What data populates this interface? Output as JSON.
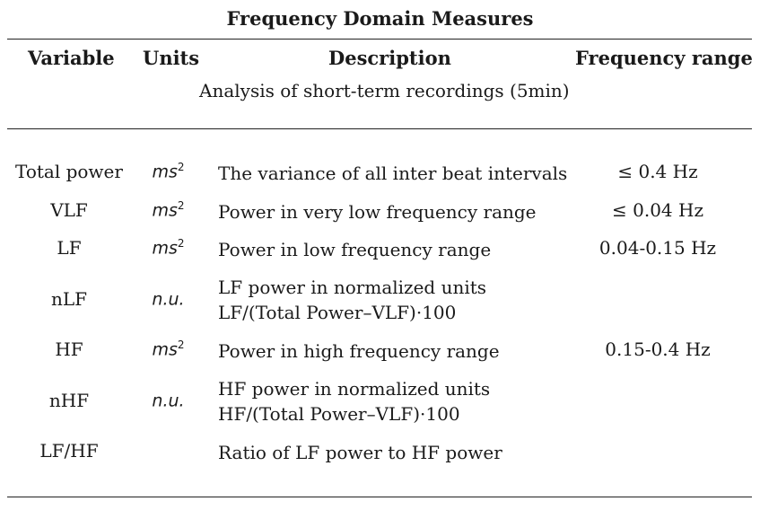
{
  "table": {
    "title": "Frequency Domain Measures",
    "headers": {
      "variable": "Variable",
      "units": "Units",
      "description": "Description",
      "frequency_range": "Frequency range"
    },
    "subheader": "Analysis of short-term recordings (5min)",
    "rows": [
      {
        "variable": "Total power",
        "units_base": "ms",
        "units_sup": "2",
        "description_1": "The variance of all inter beat intervals",
        "description_2": "",
        "frequency": "≤ 0.4 Hz"
      },
      {
        "variable": "VLF",
        "units_base": "ms",
        "units_sup": "2",
        "description_1": "Power in very low frequency range",
        "description_2": "",
        "frequency": "≤ 0.04 Hz"
      },
      {
        "variable": "LF",
        "units_base": "ms",
        "units_sup": "2",
        "description_1": "Power in low frequency range",
        "description_2": "",
        "frequency": "0.04-0.15 Hz"
      },
      {
        "variable": "nLF",
        "units_base": "n.u.",
        "units_sup": "",
        "description_1": "LF power in normalized units",
        "description_2": "LF/(Total Power–VLF)·100",
        "frequency": ""
      },
      {
        "variable": "HF",
        "units_base": "ms",
        "units_sup": "2",
        "description_1": "Power in high frequency range",
        "description_2": "",
        "frequency": "0.15-0.4 Hz"
      },
      {
        "variable": "nHF",
        "units_base": "n.u.",
        "units_sup": "",
        "description_1": "HF power in normalized units",
        "description_2": "HF/(Total Power–VLF)·100",
        "frequency": ""
      },
      {
        "variable": "LF/HF",
        "units_base": "",
        "units_sup": "",
        "description_1": "Ratio of LF power to HF power",
        "description_2": "",
        "frequency": ""
      }
    ]
  }
}
